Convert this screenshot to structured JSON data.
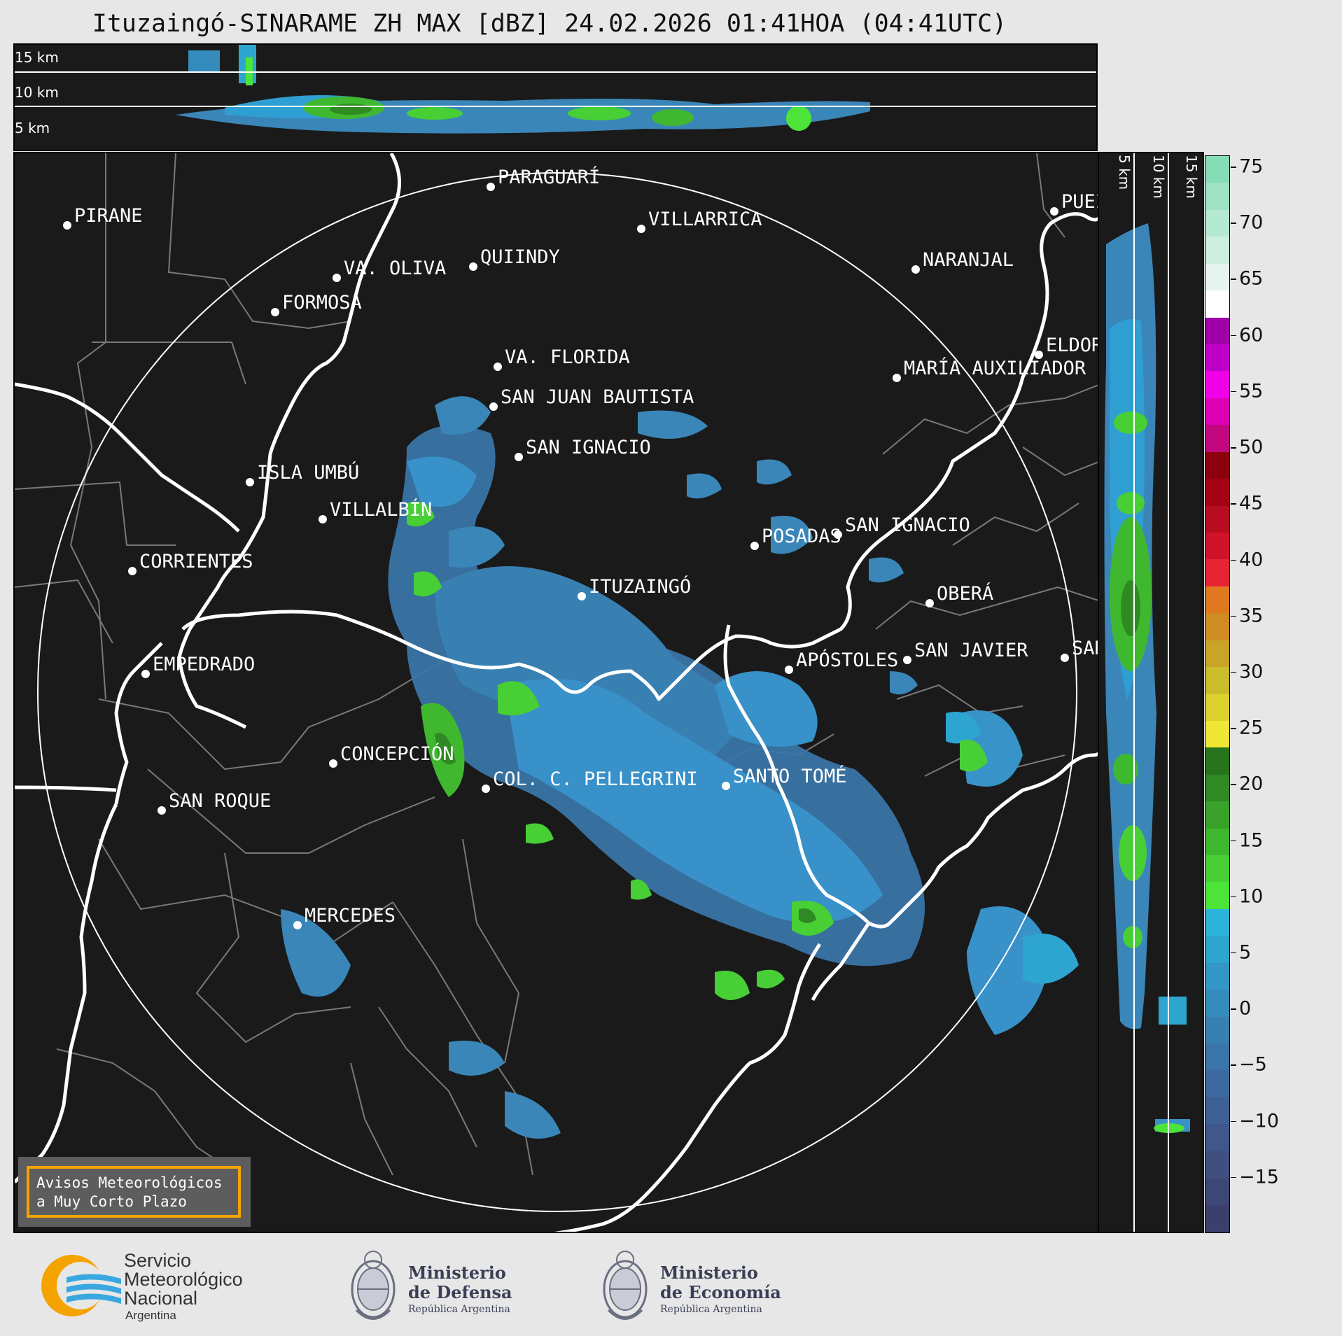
{
  "title": "Ituzaingó-SINARAME ZH MAX [dBZ] 24.02.2026 01:41HOA (04:41UTC)",
  "top_altitudes": [
    "15 km",
    "10 km",
    "5 km"
  ],
  "side_altitudes": [
    "5 km",
    "10 km",
    "15 km"
  ],
  "cities": [
    {
      "name": "PARAGUARÍ"
    },
    {
      "name": "VILLARRICA"
    },
    {
      "name": "PIRANE"
    },
    {
      "name": "QUIINDY"
    },
    {
      "name": "VA. OLIVA"
    },
    {
      "name": "NARANJAL"
    },
    {
      "name": "FORMOSA"
    },
    {
      "name": "VA. FLORIDA"
    },
    {
      "name": "ELDOR"
    },
    {
      "name": "MARÍA AUXILIADOR"
    },
    {
      "name": "SAN JUAN BAUTISTA"
    },
    {
      "name": "SAN IGNACIO"
    },
    {
      "name": "ISLA UMBÚ"
    },
    {
      "name": "VILLALBÍN"
    },
    {
      "name": "SAN IGNACIO"
    },
    {
      "name": "POSADAS"
    },
    {
      "name": "CORRIENTES"
    },
    {
      "name": "ITUZAINGÓ"
    },
    {
      "name": "OBERÁ"
    },
    {
      "name": "APÓSTOLES"
    },
    {
      "name": "SAN JAVIER"
    },
    {
      "name": "SAN"
    },
    {
      "name": "EMPEDRADO"
    },
    {
      "name": "CONCEPCIÓN"
    },
    {
      "name": "COL. C. PELLEGRINI"
    },
    {
      "name": "SANTO TOMÉ"
    },
    {
      "name": "SAN ROQUE"
    },
    {
      "name": "MERCEDES"
    },
    {
      "name": "PUEI"
    }
  ],
  "colorbar": {
    "ticks": [
      "75",
      "70",
      "65",
      "60",
      "55",
      "50",
      "45",
      "40",
      "35",
      "30",
      "25",
      "20",
      "15",
      "10",
      "5",
      "0",
      "−5",
      "−10",
      "−15"
    ],
    "range_dbz": [
      -20,
      76
    ],
    "colors": [
      "#3b3f6b",
      "#3d4775",
      "#3f4f80",
      "#3f578a",
      "#3e6094",
      "#3c6a9e",
      "#3a74a8",
      "#3880b2",
      "#358bbc",
      "#3297c6",
      "#2ea5d0",
      "#2bb3da",
      "#4de43a",
      "#47cf35",
      "#3fb82f",
      "#38a229",
      "#2f8a23",
      "#28741d",
      "#efe735",
      "#dcd22f",
      "#c9bd2a",
      "#c8a427",
      "#d18b23",
      "#e0781f",
      "#e62436",
      "#d0122a",
      "#b80c20",
      "#a30314",
      "#8b000c",
      "#c2087e",
      "#dd00b5",
      "#f000e6",
      "#c000c8",
      "#a000a8",
      "#ffffff",
      "#e5f5ee",
      "#cdefe0",
      "#b5e9d2",
      "#9de3c4",
      "#85ddb6"
    ]
  },
  "warning": {
    "line1": "Avisos Meteorológicos",
    "line2": "a Muy Corto Plazo"
  },
  "logos": {
    "smn": {
      "line1": "Servicio",
      "line2": "Meteorológico",
      "line3": "Nacional",
      "line4": "Argentina"
    },
    "defensa": {
      "line1": "Ministerio",
      "line2": "de Defensa",
      "line3": "República Argentina"
    },
    "economia": {
      "line1": "Ministerio",
      "line2": "de Economía",
      "line3": "República Argentina"
    }
  }
}
